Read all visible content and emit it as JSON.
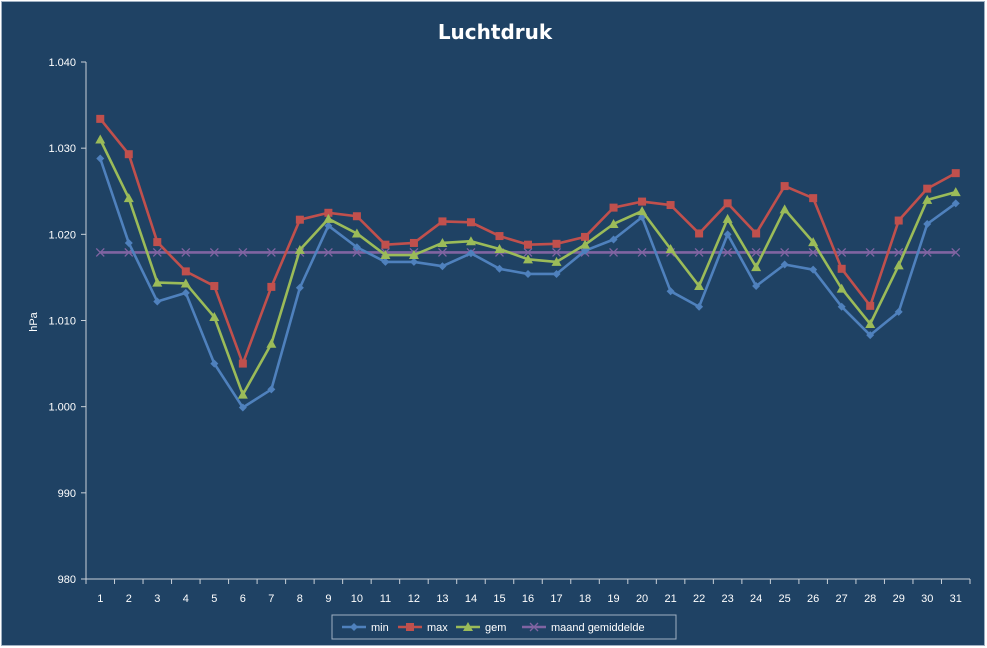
{
  "chart_data": {
    "type": "line",
    "title": "Luchtdruk",
    "xlabel": "",
    "ylabel": "hPa",
    "ylim": [
      980,
      1040
    ],
    "yticks": [
      980,
      990,
      1000,
      1010,
      1020,
      1030,
      1040
    ],
    "ytick_labels": [
      "980",
      "990",
      "1.000",
      "1.010",
      "1.020",
      "1.030",
      "1.040"
    ],
    "x": [
      1,
      2,
      3,
      4,
      5,
      6,
      7,
      8,
      9,
      10,
      11,
      12,
      13,
      14,
      15,
      16,
      17,
      18,
      19,
      20,
      21,
      22,
      23,
      24,
      25,
      26,
      27,
      28,
      29,
      30,
      31
    ],
    "grid": false,
    "legend_position": "bottom",
    "series": [
      {
        "name": "min",
        "color": "#4f81bd",
        "marker": "diamond",
        "values": [
          1028.8,
          1019.0,
          1012.2,
          1013.2,
          1005.0,
          999.9,
          1002.0,
          1013.8,
          1021.0,
          1018.5,
          1016.8,
          1016.8,
          1016.3,
          1017.8,
          1016.0,
          1015.4,
          1015.4,
          1018.1,
          1019.4,
          1022.0,
          1013.4,
          1011.6,
          1020.0,
          1014.0,
          1016.5,
          1015.9,
          1011.6,
          1008.3,
          1011.0,
          1021.2,
          1023.6
        ]
      },
      {
        "name": "max",
        "color": "#c0504d",
        "marker": "square",
        "values": [
          1033.4,
          1029.3,
          1019.1,
          1015.7,
          1014.0,
          1005.0,
          1013.9,
          1021.7,
          1022.5,
          1022.1,
          1018.8,
          1019.0,
          1021.5,
          1021.4,
          1019.8,
          1018.8,
          1018.9,
          1019.7,
          1023.1,
          1023.8,
          1023.4,
          1020.1,
          1023.6,
          1020.1,
          1025.6,
          1024.2,
          1016.0,
          1011.7,
          1021.6,
          1025.3,
          1027.1
        ]
      },
      {
        "name": "gem",
        "color": "#9bbb59",
        "marker": "triangle",
        "values": [
          1031.0,
          1024.2,
          1014.4,
          1014.3,
          1010.4,
          1001.4,
          1007.3,
          1018.2,
          1021.8,
          1020.1,
          1017.6,
          1017.6,
          1019.0,
          1019.2,
          1018.3,
          1017.1,
          1016.8,
          1018.8,
          1021.2,
          1022.7,
          1018.3,
          1014.0,
          1021.8,
          1016.2,
          1022.9,
          1019.1,
          1013.7,
          1009.6,
          1016.4,
          1024.0,
          1024.9
        ]
      },
      {
        "name": "maand gemiddelde",
        "color": "#8064a2",
        "marker": "x",
        "values": [
          1017.9,
          1017.9,
          1017.9,
          1017.9,
          1017.9,
          1017.9,
          1017.9,
          1017.9,
          1017.9,
          1017.9,
          1017.9,
          1017.9,
          1017.9,
          1017.9,
          1017.9,
          1017.9,
          1017.9,
          1017.9,
          1017.9,
          1017.9,
          1017.9,
          1017.9,
          1017.9,
          1017.9,
          1017.9,
          1017.9,
          1017.9,
          1017.9,
          1017.9,
          1017.9,
          1017.9
        ]
      }
    ]
  }
}
